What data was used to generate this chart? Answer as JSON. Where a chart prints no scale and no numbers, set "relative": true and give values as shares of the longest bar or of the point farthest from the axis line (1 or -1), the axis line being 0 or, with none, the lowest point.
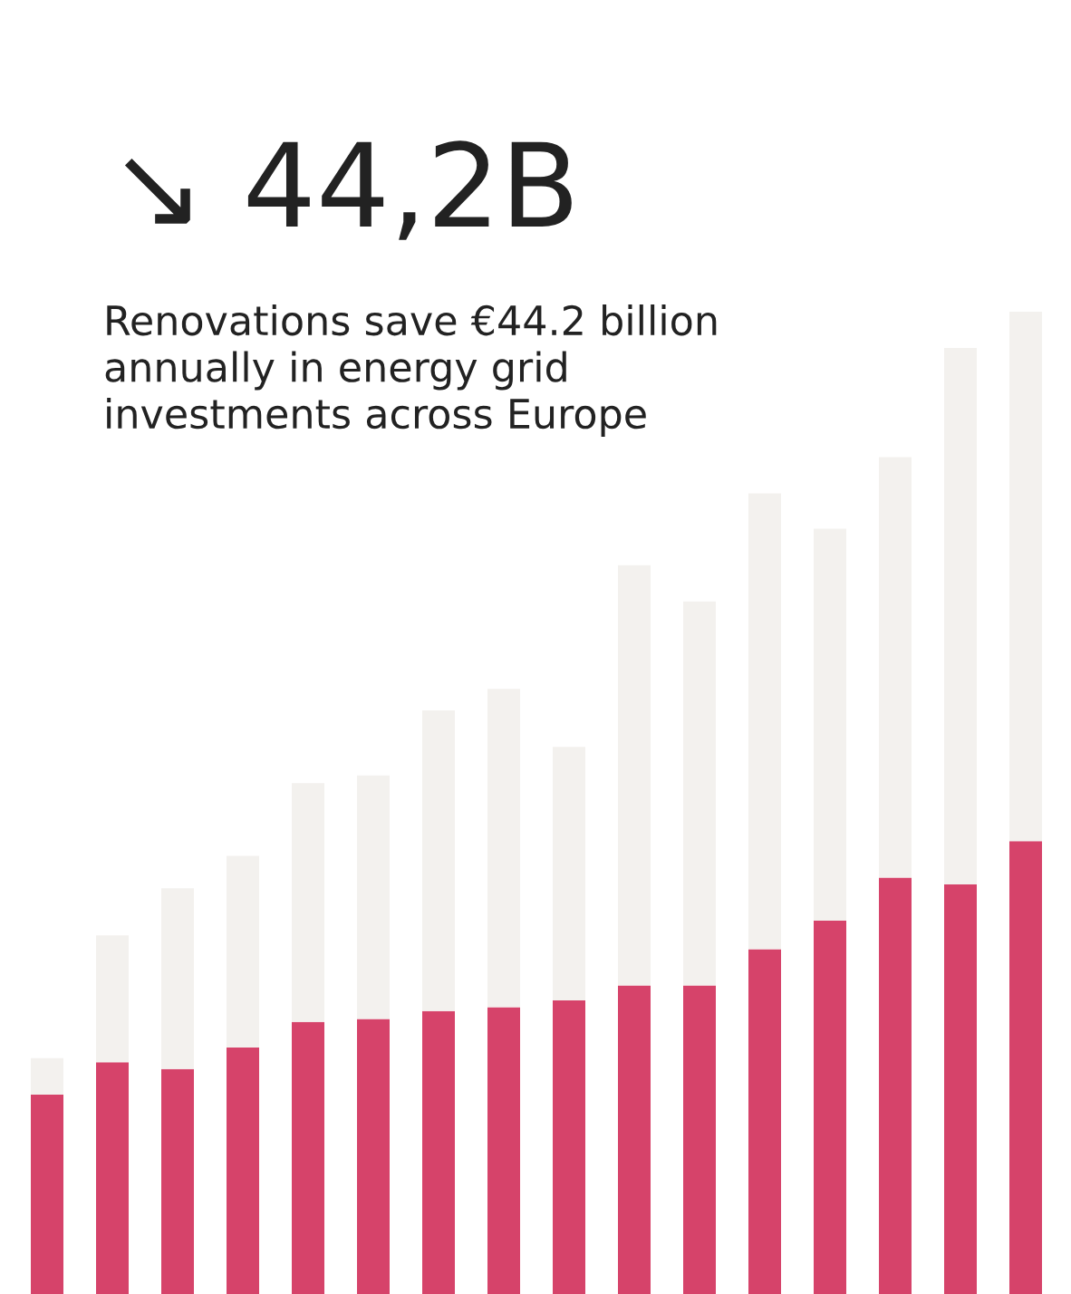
{
  "chart_data": {
    "type": "bar",
    "title": "↘ 44,2B",
    "subtitle": "Renovations save €44.2 billion\nannually in energy grid\ninvestments across Europe",
    "relative": true,
    "stacked": true,
    "categories": [
      null,
      null,
      null,
      null,
      null,
      null,
      null,
      null,
      null,
      null,
      null,
      null,
      null,
      null,
      null,
      null
    ],
    "series": [
      {
        "color": "#d6436a",
        "values": [
          0.203,
          0.236,
          0.229,
          0.251,
          0.277,
          0.28,
          0.288,
          0.292,
          0.299,
          0.314,
          0.314,
          0.351,
          0.38,
          0.424,
          0.417,
          0.461
        ]
      },
      {
        "color": "#f3f1ee",
        "values": [
          0.037,
          0.129,
          0.184,
          0.195,
          0.243,
          0.248,
          0.306,
          0.324,
          0.258,
          0.428,
          0.391,
          0.464,
          0.399,
          0.428,
          0.546,
          0.539
        ]
      }
    ]
  }
}
